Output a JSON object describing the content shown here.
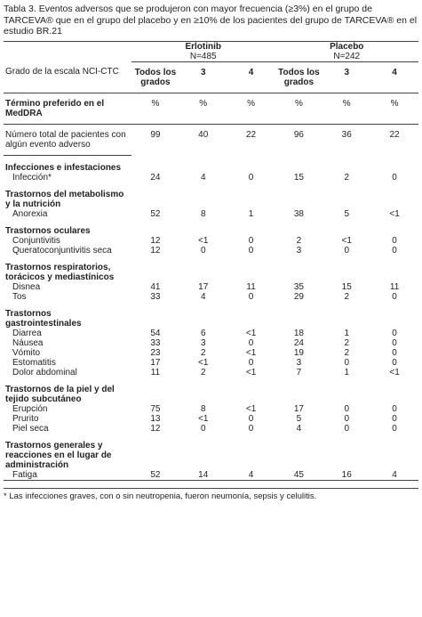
{
  "header": {
    "title": "Tabla 3. Eventos adversos que se produjeron con mayor frecuencia (≥3%) en el grupo de TARCEVA® que en el grupo del placebo y en ≥10% de los pacientes del grupo de TARCEVA® en el estudio BR.21"
  },
  "table": {
    "groups": [
      {
        "name": "Erlotinib",
        "n": "N=485"
      },
      {
        "name": "Placebo",
        "n": "N=242"
      }
    ],
    "grade_label": "Grado de la escala NCI-CTC",
    "grades": [
      "Todos los grados",
      "3",
      "4",
      "Todos los grados",
      "3",
      "4"
    ],
    "term_label": "Término preferido en el MedDRA",
    "units": [
      "%",
      "%",
      "%",
      "%",
      "%",
      "%"
    ],
    "total": {
      "label": "Número total de pacientes con algún evento adverso",
      "values": [
        99,
        40,
        22,
        96,
        36,
        22
      ]
    },
    "sections": [
      {
        "title": "Infecciones e infestaciones",
        "rows": [
          {
            "label": "Infección*",
            "values": [
              24,
              4,
              0,
              15,
              2,
              0
            ]
          }
        ]
      },
      {
        "title": "Trastornos del metabolismo y la nutrición",
        "rows": [
          {
            "label": "Anorexia",
            "values": [
              52,
              8,
              1,
              38,
              5,
              "<1"
            ]
          }
        ]
      },
      {
        "title": "Trastornos oculares",
        "rows": [
          {
            "label": "Conjuntivitis",
            "values": [
              12,
              "<1",
              0,
              2,
              "<1",
              0
            ]
          },
          {
            "label": "Queratoconjuntivitis seca",
            "values": [
              12,
              0,
              0,
              3,
              0,
              0
            ]
          }
        ]
      },
      {
        "title": "Trastornos respiratorios, torácicos y mediastínicos",
        "rows": [
          {
            "label": "Disnea",
            "values": [
              41,
              17,
              11,
              35,
              15,
              11
            ]
          },
          {
            "label": "Tos",
            "values": [
              33,
              4,
              0,
              29,
              2,
              0
            ]
          }
        ]
      },
      {
        "title": "Trastornos gastrointestinales",
        "rows": [
          {
            "label": "Diarrea",
            "values": [
              54,
              6,
              "<1",
              18,
              1,
              0
            ]
          },
          {
            "label": "Náusea",
            "values": [
              33,
              3,
              0,
              24,
              2,
              0
            ]
          },
          {
            "label": "Vómito",
            "values": [
              23,
              2,
              "<1",
              19,
              2,
              0
            ]
          },
          {
            "label": "Estomatitis",
            "values": [
              17,
              "<1",
              0,
              3,
              0,
              0
            ]
          },
          {
            "label": "Dolor abdominal",
            "values": [
              11,
              2,
              "<1",
              7,
              1,
              "<1"
            ]
          }
        ]
      },
      {
        "title": "Trastornos de la piel y del tejido subcutáneo",
        "rows": [
          {
            "label": "Erupción",
            "values": [
              75,
              8,
              "<1",
              17,
              0,
              0
            ]
          },
          {
            "label": "Prurito",
            "values": [
              13,
              "<1",
              0,
              5,
              0,
              0
            ]
          },
          {
            "label": "Piel seca",
            "values": [
              12,
              0,
              0,
              4,
              0,
              0
            ]
          }
        ]
      },
      {
        "title": "Trastornos generales y reacciones en el lugar de administración",
        "rows": [
          {
            "label": "Fatiga",
            "values": [
              52,
              14,
              4,
              45,
              16,
              4
            ]
          }
        ]
      }
    ],
    "footnote": "* Las infecciones graves, con o sin neutropenia, fueron neumonía, sepsis y celulitis."
  }
}
